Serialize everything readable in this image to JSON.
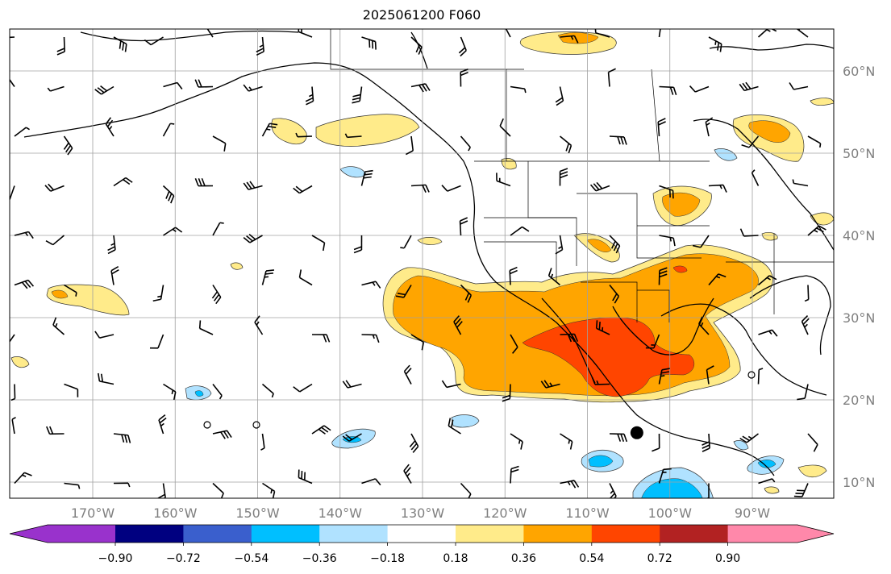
{
  "title": "2025061200 F060",
  "map": {
    "lon_range": [
      -180,
      -80
    ],
    "lat_range": [
      8,
      65
    ],
    "lat_labels": [
      "60°N",
      "50°N",
      "40°N",
      "30°N",
      "20°N",
      "10°N"
    ],
    "lat_values": [
      60,
      50,
      40,
      30,
      20,
      10
    ],
    "lon_labels": [
      "170°W",
      "160°W",
      "150°W",
      "140°W",
      "130°W",
      "120°W",
      "110°W",
      "100°W",
      "90°W"
    ],
    "lon_values": [
      -170,
      -160,
      -150,
      -140,
      -130,
      -120,
      -110,
      -100,
      -90
    ],
    "grid": true,
    "marker": {
      "lon": -104,
      "lat": 16,
      "symbol": "filled-circle"
    }
  },
  "colorbar": {
    "extend": "both",
    "levels": [
      -0.9,
      -0.72,
      -0.54,
      -0.36,
      -0.18,
      0.18,
      0.36,
      0.54,
      0.72,
      0.9
    ],
    "tick_labels": [
      "−0.90",
      "−0.72",
      "−0.54",
      "−0.36",
      "−0.18",
      "0.18",
      "0.36",
      "0.54",
      "0.72",
      "0.90"
    ],
    "colors": [
      "#9932cc",
      "#000080",
      "#3a5fcd",
      "#00bfff",
      "#b0e2ff",
      "#ffffff",
      "#ffeb8a",
      "#ffa500",
      "#ff4500",
      "#b22222",
      "#ff88aa"
    ]
  }
}
